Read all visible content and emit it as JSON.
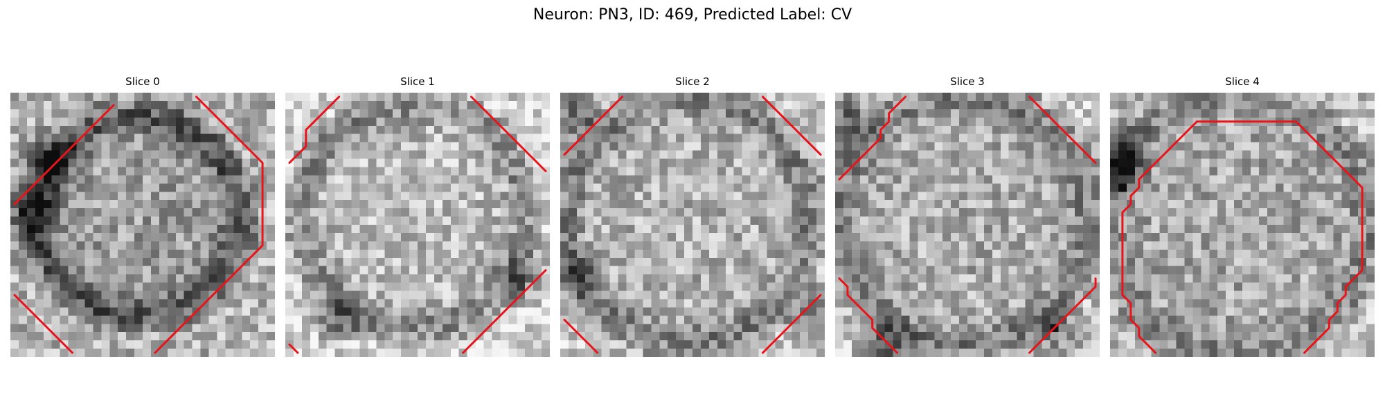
{
  "figure": {
    "title": "Neuron: PN3, ID: 469, Predicted Label: CV"
  },
  "colors": {
    "contour": "#e8141a",
    "background": "#ffffff"
  },
  "image_style": {
    "colormap": "grayscale",
    "grid_size": 32
  },
  "panels": [
    {
      "title": "Slice 0",
      "contours": [
        "12,1 11,2 10,3 9,4 8,5 7,6 6,7 5,8 4,9 3,10 2,11 1,12 0,13",
        "22,0 23,1 24,2 25,3 26,4 27,5 28,6 29,7 30,8 30,9 30,10 30,11 30,12 30,13 30,14 30,15 30,16 30,17 30,18 29,19 28,20 27,21 26,22 25,23 24,24 23,25 22,26 21,27 20,28 19,29 18,30 17,31",
        "0,24 1,25 2,26 3,27 4,28 5,29 6,30 7,31"
      ]
    },
    {
      "title": "Slice 1",
      "contours": [
        "6,0 5,1 4,2 3,3 2,4 2,5 2,6 1,7 0,8",
        "22,0 23,1 24,2 25,3 26,4 27,5 28,6 29,7 30,8 31,9",
        "31,21 30,22 29,23 28,24 27,25 26,26 25,27 24,28 23,29 22,30 21,31",
        "0,30 1,31"
      ]
    },
    {
      "title": "Slice 2",
      "contours": [
        "7,0 6,1 5,2 4,3 3,4 2,5 1,6 0,7",
        "24,0 25,1 26,2 27,3 28,4 29,5 30,6 31,7",
        "31,24 30,25 29,26 28,27 27,28 26,29 25,30 24,31",
        "0,27 1,28 2,29 3,30 4,31"
      ]
    },
    {
      "title": "Slice 3",
      "contours": [
        "8,0 7,1 6,2 6,3 5,4 5,5 4,6 3,7 2,8 1,9 0,10",
        "23,0 24,1 25,2 26,3 27,4 28,5 29,6 30,7 31,8",
        "0,22 1,23 1,24 2,25 3,26 4,27 4,28 5,29 6,30 7,31",
        "31,22 31,23 30,24 29,25 28,26 27,27 26,28 25,29 24,30 23,31"
      ]
    },
    {
      "title": "Slice 4",
      "contours": [
        "5,31 4,30 3,29 3,28 2,27 2,26 2,25 1,24 1,23 1,22 1,21 1,20 1,19 1,18 1,17 1,16 1,15 1,14 2,13 2,12 3,11 3,10 4,9 5,8 6,7 7,6 8,5 9,4 10,3 11,3 12,3 13,3 14,3 15,3 16,3 17,3 18,3 19,3 20,3 21,3 22,3 23,4 24,5 25,6 26,7 27,8 28,9 29,10 30,11 30,12 30,13 30,14 30,15 30,16 30,17 30,18 30,19 30,20 30,21 29,22 28,23 28,24 27,25 27,26 26,27 26,28 25,29 24,30 23,31"
      ]
    }
  ]
}
